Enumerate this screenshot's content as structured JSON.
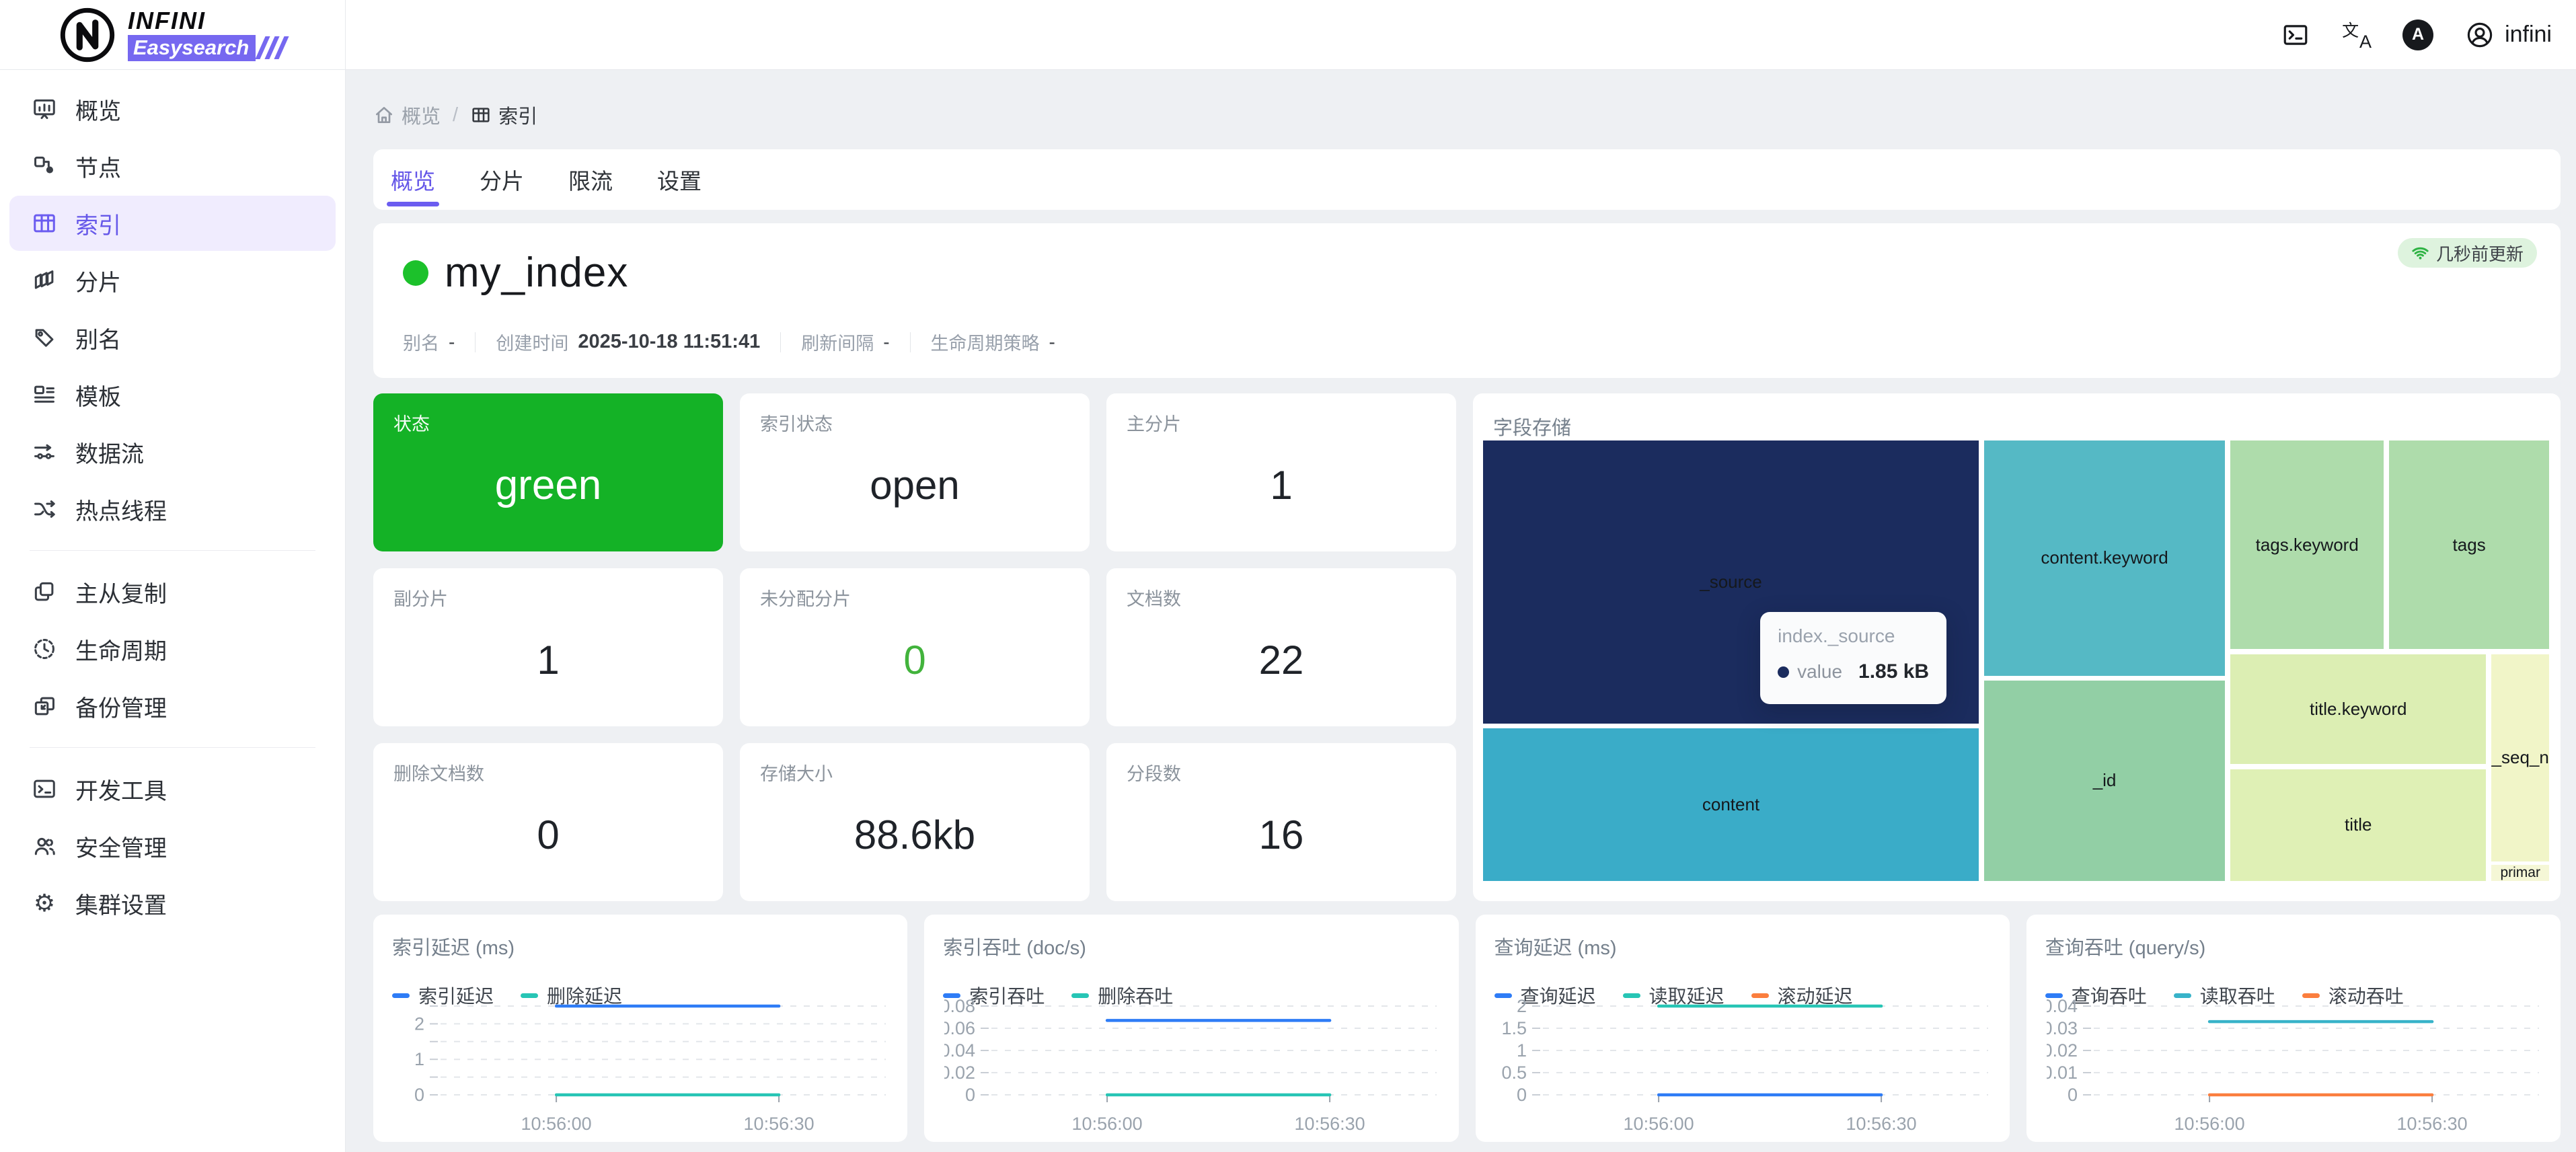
{
  "header": {
    "logo_primary": "INFINI",
    "logo_secondary": "Easysearch",
    "theme_label": "A",
    "username": "infini"
  },
  "sidebar": {
    "groups": [
      {
        "items": [
          {
            "label": "概览",
            "icon": "dashboard-icon"
          },
          {
            "label": "节点",
            "icon": "nodes-icon"
          },
          {
            "label": "索引",
            "icon": "table-icon"
          },
          {
            "label": "分片",
            "icon": "shards-icon"
          },
          {
            "label": "别名",
            "icon": "tag-icon"
          },
          {
            "label": "模板",
            "icon": "template-icon"
          },
          {
            "label": "数据流",
            "icon": "dataflow-icon"
          },
          {
            "label": "热点线程",
            "icon": "shuffle-icon"
          }
        ]
      },
      {
        "items": [
          {
            "label": "主从复制",
            "icon": "replication-icon"
          },
          {
            "label": "生命周期",
            "icon": "clock-icon"
          },
          {
            "label": "备份管理",
            "icon": "backup-icon"
          }
        ]
      },
      {
        "items": [
          {
            "label": "开发工具",
            "icon": "terminal-icon"
          },
          {
            "label": "安全管理",
            "icon": "users-icon"
          },
          {
            "label": "集群设置",
            "icon": "gear-icon"
          }
        ]
      }
    ]
  },
  "breadcrumb": {
    "root": "概览",
    "separator": "/",
    "current": "索引"
  },
  "tabs": [
    {
      "label": "概览"
    },
    {
      "label": "分片"
    },
    {
      "label": "限流"
    },
    {
      "label": "设置"
    }
  ],
  "index_overview": {
    "name": "my_index",
    "health": "green",
    "updated_badge": "几秒前更新",
    "meta": [
      {
        "label": "别名",
        "value": "-"
      },
      {
        "label": "创建时间",
        "value": "2025-10-18 11:51:41"
      },
      {
        "label": "刷新间隔",
        "value": "-"
      },
      {
        "label": "生命周期策略",
        "value": "-"
      }
    ]
  },
  "metrics": [
    {
      "label": "状态",
      "value": "green"
    },
    {
      "label": "索引状态",
      "value": "open"
    },
    {
      "label": "主分片",
      "value": "1"
    },
    {
      "label": "副分片",
      "value": "1"
    },
    {
      "label": "未分配分片",
      "value": "0"
    },
    {
      "label": "文档数",
      "value": "22"
    },
    {
      "label": "删除文档数",
      "value": "0"
    },
    {
      "label": "存储大小",
      "value": "88.6kb"
    },
    {
      "label": "分段数",
      "value": "16"
    }
  ],
  "colors": {
    "accent_purple": "#6b5cf0",
    "status_green": "#14b226",
    "badge_green_bg": "#def3de",
    "line_blue": "#2e7cf6",
    "line_teal": "#27c5b5",
    "line_orange": "#fb7e3e"
  },
  "chart_data": [
    {
      "type": "treemap",
      "title": "字段存储",
      "blocks": [
        {
          "name": "_source",
          "color": "#1b2c5e",
          "x": 0,
          "y": 0,
          "w": 46.5,
          "h": 64.2
        },
        {
          "name": "content",
          "color": "#3aacc8",
          "x": 0,
          "y": 65.3,
          "w": 46.5,
          "h": 34.7
        },
        {
          "name": "content.keyword",
          "color": "#55b9c5",
          "x": 47.0,
          "y": 0,
          "w": 22.6,
          "h": 53.4
        },
        {
          "name": "_id",
          "color": "#92cfa5",
          "x": 47.0,
          "y": 54.5,
          "w": 22.6,
          "h": 45.5
        },
        {
          "name": "tags.keyword",
          "color": "#aedcab",
          "x": 70.1,
          "y": 0,
          "w": 14.4,
          "h": 47.4
        },
        {
          "name": "tags",
          "color": "#aedcab",
          "x": 85.0,
          "y": 0,
          "w": 15.0,
          "h": 47.4
        },
        {
          "name": "title.keyword",
          "color": "#dceeb3",
          "x": 70.1,
          "y": 48.5,
          "w": 24.0,
          "h": 25.0
        },
        {
          "name": "title",
          "color": "#dff0b5",
          "x": 70.1,
          "y": 74.6,
          "w": 24.0,
          "h": 25.4
        },
        {
          "name": "_seq_n",
          "color": "#f1f5c8",
          "x": 94.6,
          "y": 48.5,
          "w": 5.4,
          "h": 47.0
        },
        {
          "name": "primar",
          "color": "#f5f7d6",
          "x": 94.6,
          "y": 96.4,
          "w": 5.4,
          "h": 3.6
        }
      ],
      "tooltip": {
        "title": "index._source",
        "series_name": "value",
        "value": "1.85 kB",
        "marker_color": "#1b2c5e"
      }
    },
    {
      "type": "line",
      "title": "索引延迟 (ms)",
      "x_ticks": [
        "10:56:00",
        "10:56:30"
      ],
      "ylim": [
        0,
        2.5
      ],
      "yticks": [
        {
          "v": 0,
          "label": "0"
        },
        {
          "v": 0.5,
          "label": ""
        },
        {
          "v": 1,
          "label": "1"
        },
        {
          "v": 1.5,
          "label": ""
        },
        {
          "v": 2,
          "label": "2"
        },
        {
          "v": 2.5,
          "label": ""
        }
      ],
      "series": [
        {
          "name": "索引延迟",
          "color": "#2e7cf6",
          "value": 2.5
        },
        {
          "name": "删除延迟",
          "color": "#27c5b5",
          "value": 0
        }
      ]
    },
    {
      "type": "line",
      "title": "索引吞吐 (doc/s)",
      "x_ticks": [
        "10:56:00",
        "10:56:30"
      ],
      "ylim": [
        0,
        0.08
      ],
      "yticks": [
        {
          "v": 0,
          "label": "0"
        },
        {
          "v": 0.02,
          "label": "0.02"
        },
        {
          "v": 0.04,
          "label": "0.04"
        },
        {
          "v": 0.06,
          "label": "0.06"
        },
        {
          "v": 0.08,
          "label": "0.08"
        }
      ],
      "series": [
        {
          "name": "索引吞吐",
          "color": "#2e7cf6",
          "value": 0.067
        },
        {
          "name": "删除吞吐",
          "color": "#27c5b5",
          "value": 0
        }
      ]
    },
    {
      "type": "line",
      "title": "查询延迟 (ms)",
      "x_ticks": [
        "10:56:00",
        "10:56:30"
      ],
      "ylim": [
        0,
        2
      ],
      "yticks": [
        {
          "v": 0,
          "label": "0"
        },
        {
          "v": 0.5,
          "label": "0.5"
        },
        {
          "v": 1,
          "label": "1"
        },
        {
          "v": 1.5,
          "label": "1.5"
        },
        {
          "v": 2,
          "label": "2"
        }
      ],
      "series": [
        {
          "name": "查询延迟",
          "color": "#2e7cf6",
          "value": 0
        },
        {
          "name": "读取延迟",
          "color": "#27c5b5",
          "value": 2
        },
        {
          "name": "滚动延迟",
          "color": "#fb7e3e",
          "value": null
        }
      ]
    },
    {
      "type": "line",
      "title": "查询吞吐 (query/s)",
      "x_ticks": [
        "10:56:00",
        "10:56:30"
      ],
      "ylim": [
        0,
        0.04
      ],
      "yticks": [
        {
          "v": 0,
          "label": "0"
        },
        {
          "v": 0.01,
          "label": "0.01"
        },
        {
          "v": 0.02,
          "label": "0.02"
        },
        {
          "v": 0.03,
          "label": "0.03"
        },
        {
          "v": 0.04,
          "label": "0.04"
        }
      ],
      "series": [
        {
          "name": "查询吞吐",
          "color": "#2e7cf6",
          "value": null
        },
        {
          "name": "读取吞吐",
          "color": "#38b3c9",
          "value": 0.033
        },
        {
          "name": "滚动吞吐",
          "color": "#fb7e3e",
          "value": 0
        }
      ]
    }
  ]
}
